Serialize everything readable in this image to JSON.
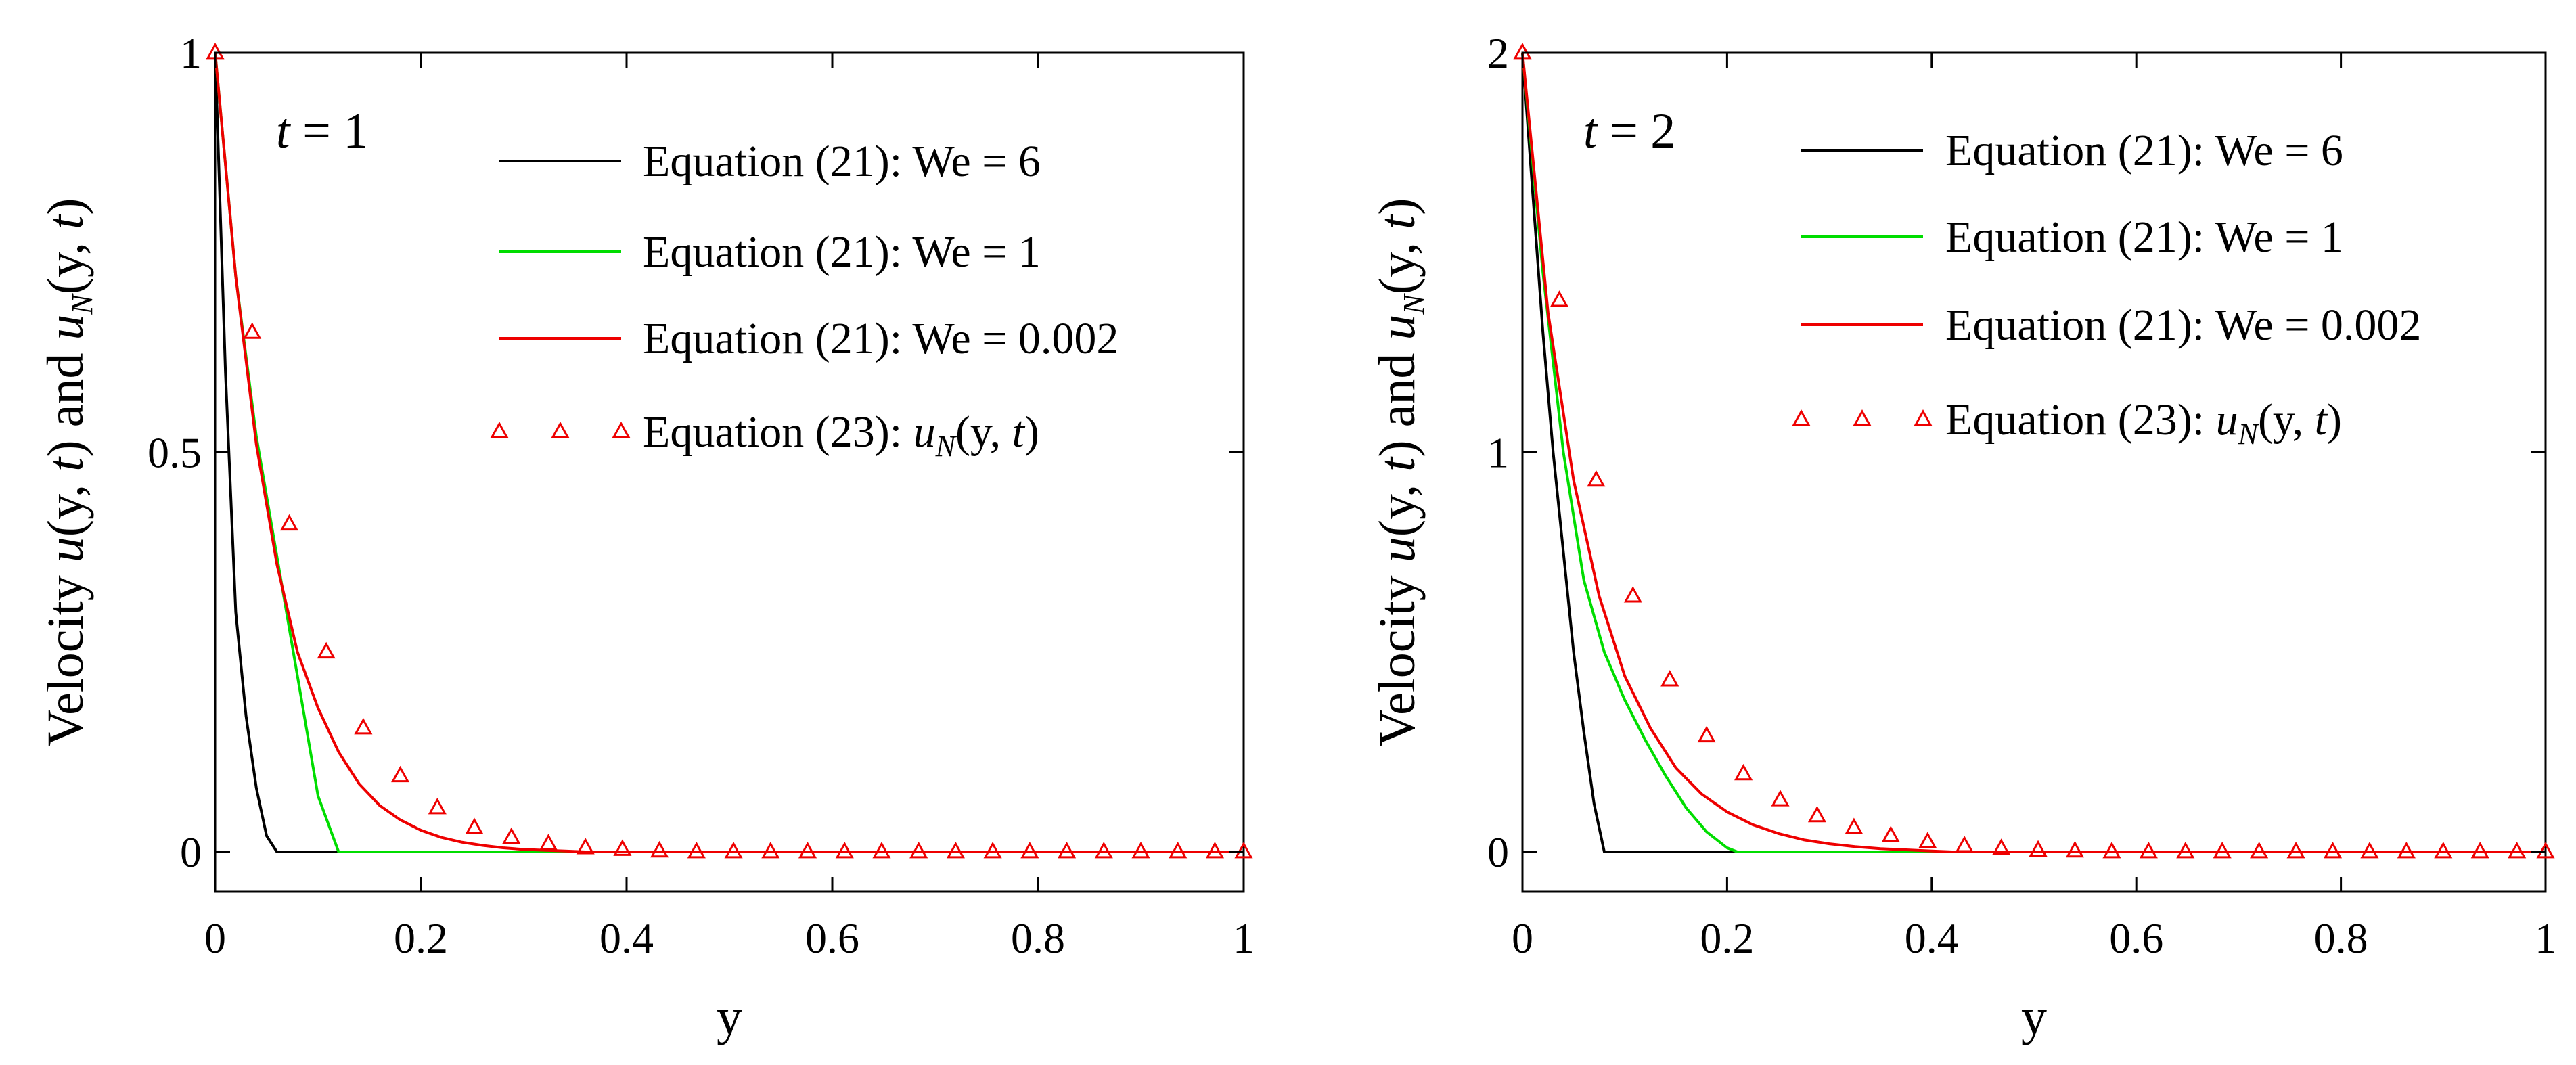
{
  "colors": {
    "we6": "#000000",
    "we1": "#00dd00",
    "we0002": "#ee0000",
    "markers": "#ee0000",
    "axis": "#000000"
  },
  "chart_data": [
    {
      "type": "line",
      "time_label": "t = 1",
      "xlabel": "y",
      "ylabel": "Velocity u(y, t) and u_N(y, t)",
      "xlim": [
        0,
        1
      ],
      "ylim": [
        -0.05,
        1
      ],
      "xticks": [
        "0",
        "0.2",
        "0.4",
        "0.6",
        "0.8",
        "1"
      ],
      "yticks": [
        "0",
        "0.5",
        "1"
      ],
      "ytick_values": [
        0,
        0.5,
        1
      ],
      "legend_position": "top-right",
      "series": [
        {
          "name": "Equation (21): We = 6",
          "style": "line",
          "x": [
            0,
            0.01,
            0.02,
            0.03,
            0.04,
            0.05,
            0.06,
            0.08,
            1.0
          ],
          "y": [
            1.0,
            0.6,
            0.3,
            0.17,
            0.08,
            0.02,
            0.0,
            0.0,
            0.0
          ]
        },
        {
          "name": "Equation (21): We = 1",
          "style": "line",
          "x": [
            0,
            0.02,
            0.04,
            0.06,
            0.08,
            0.1,
            0.12,
            0.15,
            1.0
          ],
          "y": [
            1.0,
            0.72,
            0.52,
            0.37,
            0.22,
            0.07,
            0.0,
            0.0,
            0.0
          ]
        },
        {
          "name": "Equation (21): We = 0.002",
          "style": "line",
          "x": [
            0,
            0.02,
            0.04,
            0.06,
            0.08,
            0.1,
            0.12,
            0.14,
            0.16,
            0.18,
            0.2,
            0.22,
            0.24,
            0.26,
            0.28,
            0.3,
            0.32,
            0.34,
            0.36,
            1.0
          ],
          "y": [
            1.0,
            0.72,
            0.51,
            0.36,
            0.25,
            0.18,
            0.125,
            0.085,
            0.058,
            0.04,
            0.027,
            0.018,
            0.012,
            0.008,
            0.005,
            0.003,
            0.002,
            0.001,
            0.0,
            0.0
          ]
        },
        {
          "name": "Equation (23): u_N(y, t)",
          "style": "markers",
          "x": [
            0,
            0.036,
            0.072,
            0.108,
            0.144,
            0.18,
            0.216,
            0.252,
            0.288,
            0.324,
            0.36,
            0.396,
            0.432,
            0.468,
            0.504,
            0.54,
            0.576,
            0.612,
            0.648,
            0.684,
            0.72,
            0.756,
            0.792,
            0.828,
            0.864,
            0.9,
            0.936,
            0.972,
            1.0
          ],
          "y": [
            1.0,
            0.65,
            0.41,
            0.25,
            0.155,
            0.095,
            0.055,
            0.03,
            0.018,
            0.01,
            0.005,
            0.003,
            0.001,
            0.0,
            0.0,
            0.0,
            0.0,
            0.0,
            0.0,
            0.0,
            0.0,
            0.0,
            0.0,
            0.0,
            0.0,
            0.0,
            0.0,
            0.0,
            0.0
          ]
        }
      ]
    },
    {
      "type": "line",
      "time_label": "t = 2",
      "xlabel": "y",
      "ylabel": "Velocity u(y, t) and u_N(y, t)",
      "xlim": [
        0,
        1
      ],
      "ylim": [
        -0.1,
        2
      ],
      "xticks": [
        "0",
        "0.2",
        "0.4",
        "0.6",
        "0.8",
        "1"
      ],
      "yticks": [
        "0",
        "1",
        "2"
      ],
      "ytick_values": [
        0,
        1,
        2
      ],
      "legend_position": "top-right",
      "series": [
        {
          "name": "Equation (21): We = 6",
          "style": "line",
          "x": [
            0,
            0.01,
            0.02,
            0.03,
            0.04,
            0.05,
            0.06,
            0.07,
            0.08,
            0.09,
            1.0
          ],
          "y": [
            2.0,
            1.65,
            1.3,
            1.0,
            0.75,
            0.5,
            0.3,
            0.12,
            0.0,
            0.0,
            0.0
          ]
        },
        {
          "name": "Equation (21): We = 1",
          "style": "line",
          "x": [
            0,
            0.02,
            0.04,
            0.06,
            0.08,
            0.1,
            0.12,
            0.14,
            0.16,
            0.18,
            0.2,
            0.21,
            1.0
          ],
          "y": [
            2.0,
            1.45,
            1.0,
            0.68,
            0.5,
            0.38,
            0.28,
            0.19,
            0.11,
            0.05,
            0.01,
            0.0,
            0.0
          ]
        },
        {
          "name": "Equation (21): We = 0.002",
          "style": "line",
          "x": [
            0,
            0.025,
            0.05,
            0.075,
            0.1,
            0.125,
            0.15,
            0.175,
            0.2,
            0.225,
            0.25,
            0.275,
            0.3,
            0.325,
            0.35,
            0.375,
            0.4,
            0.42,
            1.0
          ],
          "y": [
            2.0,
            1.35,
            0.93,
            0.64,
            0.44,
            0.31,
            0.21,
            0.145,
            0.1,
            0.068,
            0.046,
            0.03,
            0.02,
            0.013,
            0.008,
            0.005,
            0.002,
            0.0,
            0.0
          ]
        },
        {
          "name": "Equation (23): u_N(y, t)",
          "style": "markers",
          "x": [
            0,
            0.036,
            0.072,
            0.108,
            0.144,
            0.18,
            0.216,
            0.252,
            0.288,
            0.324,
            0.36,
            0.396,
            0.432,
            0.468,
            0.504,
            0.54,
            0.576,
            0.612,
            0.648,
            0.684,
            0.72,
            0.756,
            0.792,
            0.828,
            0.864,
            0.9,
            0.936,
            0.972,
            1.0
          ],
          "y": [
            2.0,
            1.38,
            0.93,
            0.64,
            0.43,
            0.29,
            0.195,
            0.13,
            0.09,
            0.06,
            0.04,
            0.025,
            0.015,
            0.008,
            0.004,
            0.002,
            0.0,
            0.0,
            0.0,
            0.0,
            0.0,
            0.0,
            0.0,
            0.0,
            0.0,
            0.0,
            0.0,
            0.0,
            0.0
          ]
        }
      ]
    }
  ]
}
